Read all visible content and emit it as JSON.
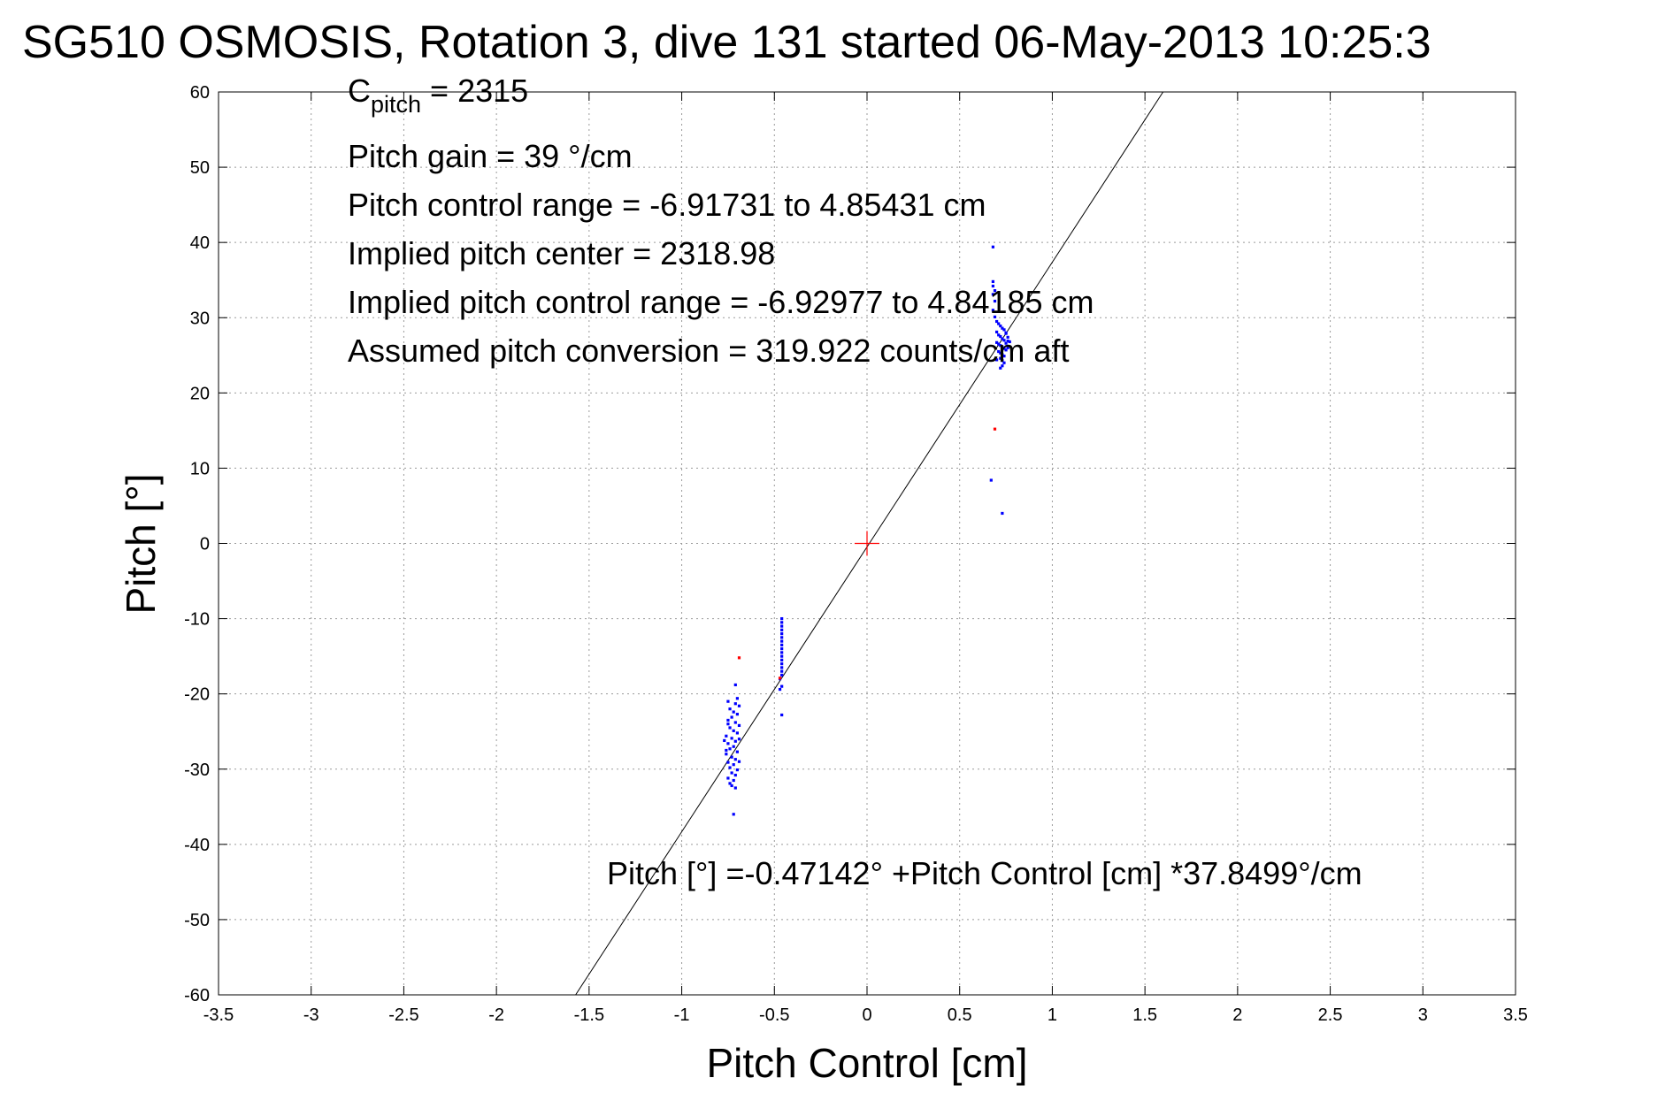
{
  "chart_data": {
    "type": "scatter",
    "title": "SG510 OSMOSIS, Rotation 3, dive 131 started 06-May-2013 10:25:3",
    "xlabel": "Pitch Control [cm]",
    "ylabel": "Pitch [°]",
    "xlim": [
      -3.5,
      3.5
    ],
    "ylim": [
      -60,
      60
    ],
    "x_ticks": [
      -3.5,
      -3,
      -2.5,
      -2,
      -1.5,
      -1,
      -0.5,
      0,
      0.5,
      1,
      1.5,
      2,
      2.5,
      3,
      3.5
    ],
    "x_tick_labels": [
      "-3.5",
      "-3",
      "-2.5",
      "-2",
      "-1.5",
      "-1",
      "-0.5",
      "0",
      "0.5",
      "1",
      "1.5",
      "2",
      "2.5",
      "3",
      "3.5"
    ],
    "y_ticks": [
      -60,
      -50,
      -40,
      -30,
      -20,
      -10,
      0,
      10,
      20,
      30,
      40,
      50,
      60
    ],
    "y_tick_labels": [
      "-60",
      "-50",
      "-40",
      "-30",
      "-20",
      "-10",
      "0",
      "10",
      "20",
      "30",
      "40",
      "50",
      "60"
    ],
    "grid": true,
    "annotations": {
      "c_pitch_main": "C",
      "c_pitch_sub": "pitch",
      "c_pitch_value": " = 2315",
      "pitch_gain": "Pitch gain = 39 °/cm",
      "control_range": "Pitch control range = -6.91731 to 4.85431 cm",
      "implied_center": "Implied pitch center = 2318.98",
      "implied_range": "Implied pitch control range = -6.92977 to 4.84185 cm",
      "conversion": "Assumed pitch conversion = 319.922 counts/cm aft",
      "fit_equation": "Pitch [°] =-0.47142° +Pitch Control [cm] *37.8499°/cm"
    },
    "fit_line": {
      "intercept": -0.47142,
      "slope": 37.8499
    },
    "center_marker": {
      "x": 0,
      "y": 0,
      "color": "#ff0000"
    },
    "series": [
      {
        "color": "#0000ff",
        "points": [
          [
            0.68,
            39.4
          ],
          [
            0.68,
            34.8
          ],
          [
            0.68,
            34.2
          ],
          [
            0.69,
            33.6
          ],
          [
            0.68,
            33.1
          ],
          [
            0.69,
            32.2
          ],
          [
            0.68,
            31.0
          ],
          [
            0.69,
            30.1
          ],
          [
            0.7,
            29.5
          ],
          [
            0.71,
            29.2
          ],
          [
            0.72,
            28.9
          ],
          [
            0.73,
            28.6
          ],
          [
            0.74,
            28.4
          ],
          [
            0.7,
            28.1
          ],
          [
            0.75,
            27.9
          ],
          [
            0.71,
            27.7
          ],
          [
            0.72,
            27.5
          ],
          [
            0.73,
            27.2
          ],
          [
            0.74,
            27.0
          ],
          [
            0.76,
            26.9
          ],
          [
            0.7,
            26.7
          ],
          [
            0.71,
            26.5
          ],
          [
            0.72,
            26.3
          ],
          [
            0.73,
            26.1
          ],
          [
            0.74,
            25.9
          ],
          [
            0.75,
            25.7
          ],
          [
            0.71,
            25.5
          ],
          [
            0.72,
            25.3
          ],
          [
            0.73,
            25.1
          ],
          [
            0.74,
            24.9
          ],
          [
            0.72,
            24.6
          ],
          [
            0.73,
            24.3
          ],
          [
            0.74,
            24.0
          ],
          [
            0.73,
            23.6
          ],
          [
            0.72,
            23.3
          ],
          [
            0.75,
            28.0
          ],
          [
            0.76,
            27.4
          ],
          [
            0.75,
            26.6
          ],
          [
            0.76,
            26.0
          ],
          [
            0.77,
            26.8
          ],
          [
            0.7,
            24.4
          ],
          [
            0.67,
            8.4
          ],
          [
            0.73,
            4.0
          ],
          [
            -0.46,
            -10.0
          ],
          [
            -0.46,
            -10.5
          ],
          [
            -0.46,
            -11.0
          ],
          [
            -0.46,
            -11.5
          ],
          [
            -0.46,
            -12.0
          ],
          [
            -0.46,
            -12.5
          ],
          [
            -0.46,
            -13.0
          ],
          [
            -0.46,
            -13.5
          ],
          [
            -0.46,
            -14.0
          ],
          [
            -0.46,
            -14.5
          ],
          [
            -0.46,
            -15.0
          ],
          [
            -0.46,
            -15.5
          ],
          [
            -0.46,
            -16.0
          ],
          [
            -0.46,
            -16.5
          ],
          [
            -0.46,
            -17.0
          ],
          [
            -0.46,
            -17.5
          ],
          [
            -0.47,
            -18.0
          ],
          [
            -0.46,
            -19.0
          ],
          [
            -0.47,
            -19.4
          ],
          [
            -0.46,
            -22.8
          ],
          [
            -0.71,
            -18.8
          ],
          [
            -0.7,
            -20.6
          ],
          [
            -0.75,
            -21.0
          ],
          [
            -0.71,
            -21.3
          ],
          [
            -0.69,
            -21.6
          ],
          [
            -0.74,
            -22.0
          ],
          [
            -0.72,
            -22.4
          ],
          [
            -0.7,
            -22.7
          ],
          [
            -0.73,
            -23.1
          ],
          [
            -0.75,
            -23.5
          ],
          [
            -0.71,
            -23.8
          ],
          [
            -0.69,
            -24.2
          ],
          [
            -0.74,
            -24.5
          ],
          [
            -0.72,
            -24.9
          ],
          [
            -0.7,
            -25.2
          ],
          [
            -0.76,
            -25.6
          ],
          [
            -0.73,
            -25.9
          ],
          [
            -0.71,
            -26.3
          ],
          [
            -0.75,
            -26.6
          ],
          [
            -0.72,
            -27.0
          ],
          [
            -0.74,
            -27.3
          ],
          [
            -0.7,
            -27.7
          ],
          [
            -0.76,
            -28.0
          ],
          [
            -0.73,
            -28.4
          ],
          [
            -0.71,
            -28.7
          ],
          [
            -0.75,
            -29.1
          ],
          [
            -0.72,
            -29.4
          ],
          [
            -0.74,
            -29.8
          ],
          [
            -0.7,
            -30.1
          ],
          [
            -0.73,
            -30.5
          ],
          [
            -0.71,
            -30.8
          ],
          [
            -0.75,
            -31.2
          ],
          [
            -0.72,
            -31.5
          ],
          [
            -0.74,
            -31.9
          ],
          [
            -0.73,
            -32.2
          ],
          [
            -0.71,
            -32.5
          ],
          [
            -0.76,
            -27.5
          ],
          [
            -0.77,
            -26.2
          ],
          [
            -0.75,
            -24.0
          ],
          [
            -0.69,
            -26.0
          ],
          [
            -0.69,
            -29.0
          ],
          [
            -0.72,
            -36.0
          ]
        ]
      },
      {
        "color": "#ff0000",
        "points": [
          [
            0.69,
            15.2
          ],
          [
            -0.69,
            -15.2
          ],
          [
            -0.47,
            -17.9
          ]
        ]
      }
    ]
  }
}
